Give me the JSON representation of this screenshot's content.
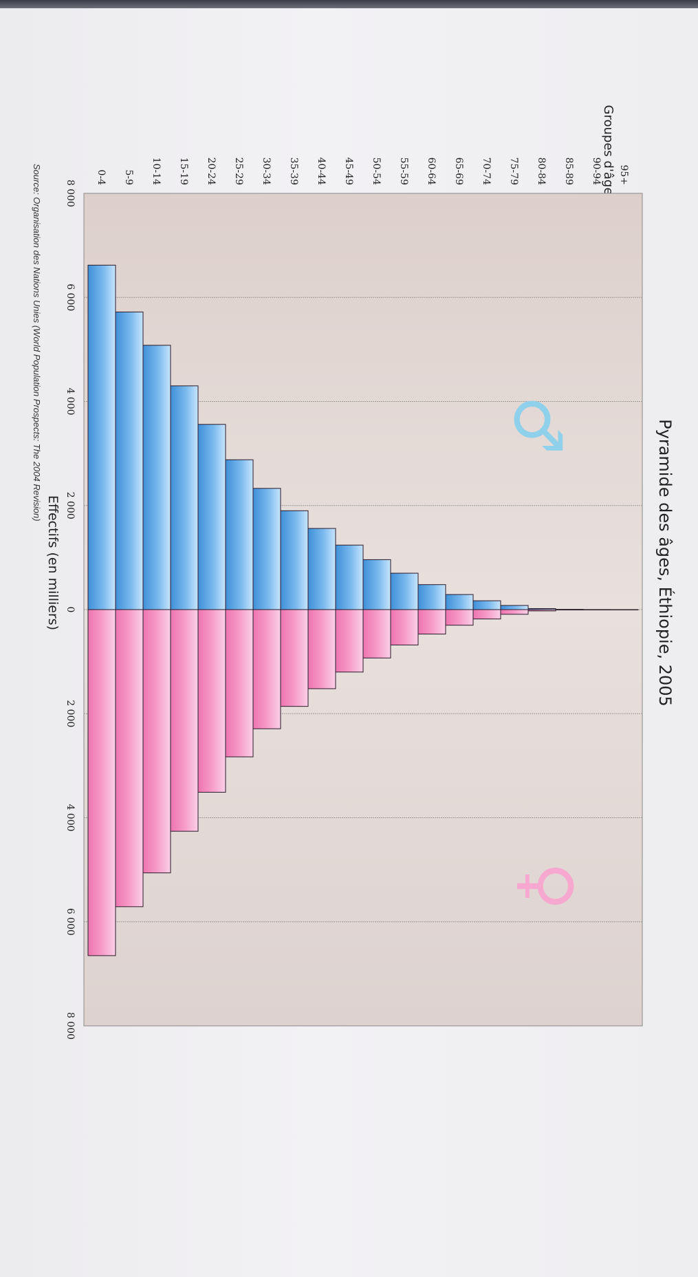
{
  "chart_data": {
    "type": "bar",
    "orientation": "horizontal",
    "title": "Pyramide des âges, Éthiopie, 2005",
    "xlabel": "Effectifs (en milliers)",
    "ylabel": "Groupes d'âge",
    "source": "Source: Organisation des Nations Unies (World Population Prospects: The 2004 Revision)",
    "xlim": [
      -8000,
      8000
    ],
    "x_tick_values": [
      -8000,
      -6000,
      -4000,
      -2000,
      0,
      2000,
      4000,
      6000,
      8000
    ],
    "x_tick_labels": [
      "8 000",
      "6 000",
      "4 000",
      "2 000",
      "0",
      "2 000",
      "4 000",
      "6 000",
      "8 000"
    ],
    "grid": true,
    "categories": [
      "0-4",
      "5-9",
      "10-14",
      "15-19",
      "20-24",
      "25-29",
      "30-34",
      "35-39",
      "40-44",
      "45-49",
      "50-54",
      "55-59",
      "60-64",
      "65-69",
      "70-74",
      "75-79",
      "80-84",
      "85-89",
      "90-94",
      "95+"
    ],
    "series": [
      {
        "symbol": "♂",
        "side": "left",
        "color": "#5aa8e8",
        "values": [
          6620,
          5720,
          5080,
          4300,
          3560,
          2880,
          2330,
          1900,
          1560,
          1240,
          960,
          700,
          480,
          290,
          170,
          80,
          20,
          5,
          1,
          0
        ]
      },
      {
        "symbol": "♀",
        "side": "right",
        "color": "#f58ec0",
        "values": [
          6650,
          5710,
          5060,
          4260,
          3510,
          2830,
          2290,
          1860,
          1520,
          1200,
          930,
          680,
          470,
          300,
          180,
          90,
          25,
          7,
          2,
          0
        ]
      }
    ],
    "colors": {
      "male_symbol": "#8fd0ea",
      "female_symbol": "#f7a8d0",
      "plot_background": "#e2d9d5",
      "bar_outline": "#2a1a2a"
    }
  }
}
